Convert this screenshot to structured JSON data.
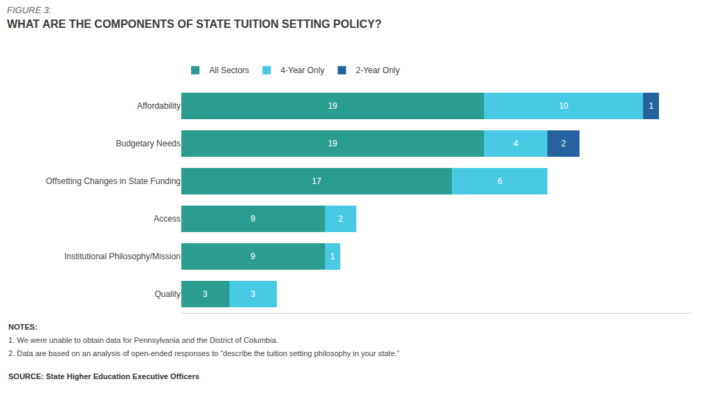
{
  "chart_data": {
    "type": "bar",
    "orientation": "horizontal",
    "stacked": true,
    "data_labels": true,
    "grid": false,
    "legend": "top",
    "tick_labels": "y",
    "title": "FIGURE 3:",
    "subtitle": "WHAT ARE THE COMPONENTS OF STATE TUITION SETTING POLICY?",
    "categories": [
      "Affordability",
      "Budgetary Needs",
      "Offsetting Changes in State Funding",
      "Access",
      "Institutional Philosophy/Mission",
      "Quality"
    ],
    "series": [
      {
        "name": "All Sectors",
        "color": "#2a9d8f",
        "values": [
          19,
          19,
          17,
          9,
          9,
          3
        ]
      },
      {
        "name": "4-Year Only",
        "color": "#48cae4",
        "values": [
          10,
          4,
          6,
          2,
          1,
          3
        ]
      },
      {
        "name": "2-Year Only",
        "color": "#2563a0",
        "values": [
          1,
          2,
          0,
          0,
          0,
          0
        ]
      }
    ],
    "xlim": [
      0,
      32
    ],
    "annotations": [
      "NOTES:",
      "1. We were unable to obtain data for Pennsylvania and the District of Columbia.",
      "2. Data are based on an analysis of open-ended responses to “describe the tuition setting philosophy in your state.”",
      "SOURCE: State Higher Education Executive Officers"
    ]
  }
}
